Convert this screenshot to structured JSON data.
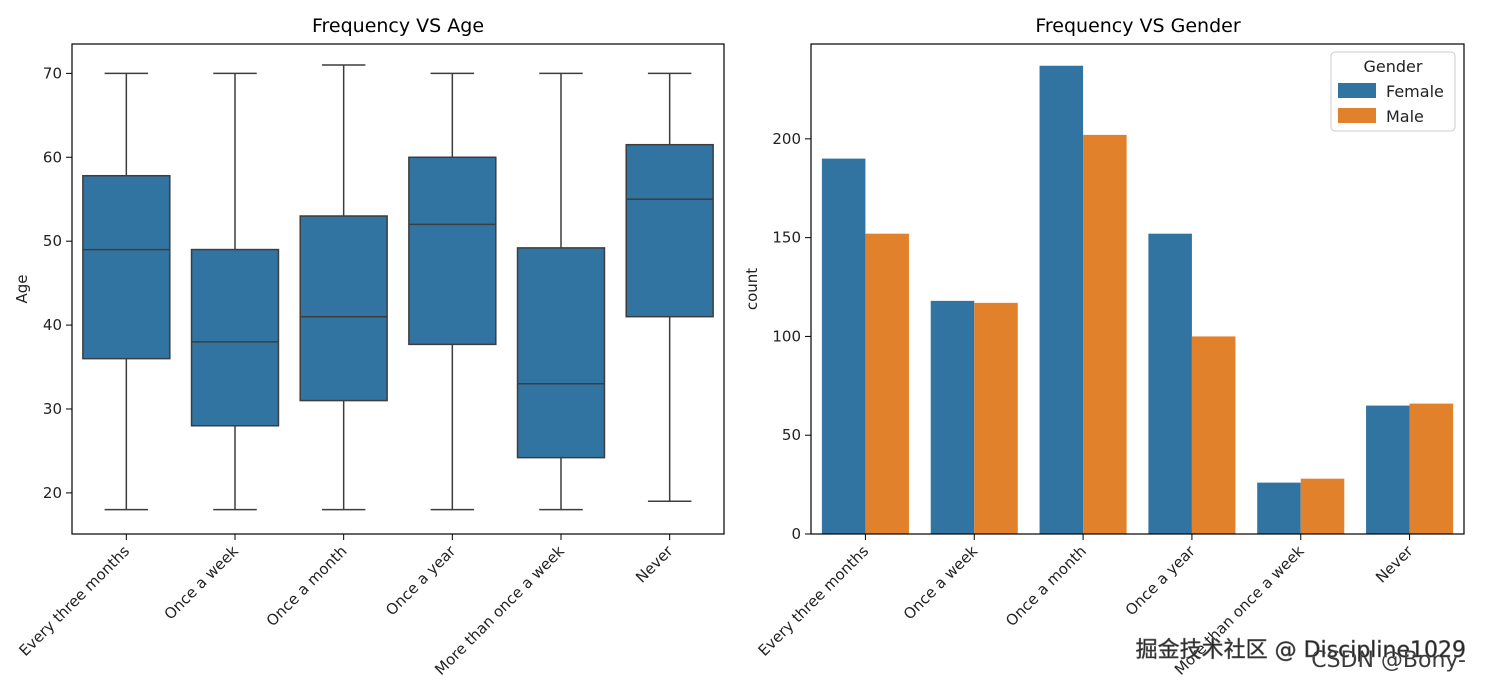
{
  "colors": {
    "female": "#3274a1",
    "male": "#e1812c",
    "line": "#3d3d3d"
  },
  "chart_data": [
    {
      "type": "box",
      "title": "Frequency VS Age",
      "xlabel": "",
      "ylabel": "Age",
      "ylim": [
        15.1,
        73.5
      ],
      "yticks": [
        20,
        30,
        40,
        50,
        60,
        70
      ],
      "categories": [
        "Every three months",
        "Once a week",
        "Once a month",
        "Once a year",
        "More than once a week",
        "Never"
      ],
      "boxes": [
        {
          "whisker_low": 18,
          "q1": 36,
          "median": 49,
          "q3": 57.8,
          "whisker_high": 70
        },
        {
          "whisker_low": 18,
          "q1": 28,
          "median": 38,
          "q3": 49,
          "whisker_high": 70
        },
        {
          "whisker_low": 18,
          "q1": 31,
          "median": 41,
          "q3": 53,
          "whisker_high": 71
        },
        {
          "whisker_low": 18,
          "q1": 37.7,
          "median": 52,
          "q3": 60,
          "whisker_high": 70
        },
        {
          "whisker_low": 18,
          "q1": 24.2,
          "median": 33,
          "q3": 49.2,
          "whisker_high": 70
        },
        {
          "whisker_low": 19,
          "q1": 41,
          "median": 55,
          "q3": 61.5,
          "whisker_high": 70
        }
      ]
    },
    {
      "type": "bar",
      "title": "Frequency VS Gender",
      "xlabel": "",
      "ylabel": "count",
      "ylim": [
        0,
        248
      ],
      "yticks": [
        0,
        50,
        100,
        150,
        200
      ],
      "categories": [
        "Every three months",
        "Once a week",
        "Once a month",
        "Once a year",
        "More than once a week",
        "Never"
      ],
      "series": [
        {
          "name": "Female",
          "values": [
            190,
            118,
            237,
            152,
            26,
            65
          ]
        },
        {
          "name": "Male",
          "values": [
            152,
            117,
            202,
            100,
            28,
            66
          ]
        }
      ],
      "legend": {
        "title": "Gender",
        "placement": "top-right"
      }
    }
  ],
  "watermark": {
    "line1": "掘金技术社区 @ Discipline1029",
    "line2": "CSDN @Bony-"
  }
}
